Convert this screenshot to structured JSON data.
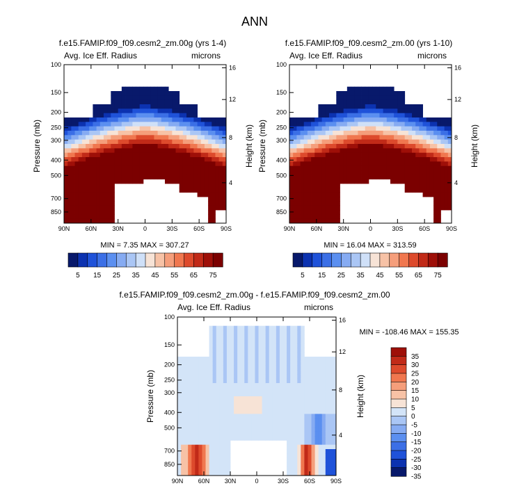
{
  "page_title": "ANN",
  "colors": {
    "ice_scale": [
      "#08196b",
      "#0c32b0",
      "#1f52d9",
      "#3b6fe6",
      "#5b8ff0",
      "#86abf2",
      "#aac6f5",
      "#cfe0f8",
      "#f7e3d6",
      "#f7c2a6",
      "#f59e7b",
      "#f0774f",
      "#dd4a2c",
      "#c12a18",
      "#9e0f08",
      "#7b0000"
    ],
    "diff_scale": [
      "#08196b",
      "#0c32b0",
      "#1f52d9",
      "#3b6fe6",
      "#5b8ff0",
      "#86abf2",
      "#aac6f5",
      "#d3e4f8",
      "#f7e3d6",
      "#f7c2a6",
      "#f59e7b",
      "#f0774f",
      "#dd4a2c",
      "#c12a18",
      "#9e0f08"
    ]
  },
  "chart_data": [
    {
      "type": "heatmap",
      "title": "f.e15.FAMIP.f09_f09.cesm2_zm.00g (yrs 1-4)",
      "left_label": "Avg. Ice Eff. Radius",
      "right_label": "microns",
      "xlabel": "",
      "ylabel": "Pressure (mb)",
      "ylabel_right": "Height (km)",
      "x_ticks": [
        "90N",
        "60N",
        "30N",
        "0",
        "30S",
        "60S",
        "90S"
      ],
      "y_ticks": [
        "100",
        "150",
        "200",
        "250",
        "300",
        "400",
        "500",
        "700",
        "850"
      ],
      "y_ticks_right": [
        "16",
        "12",
        "8",
        "4"
      ],
      "ylim": [
        100,
        1000
      ],
      "min_max_label": "MIN =   7.35   MAX = 307.27",
      "min": 7.35,
      "max": 307.27
    },
    {
      "type": "heatmap",
      "title": "f.e15.FAMIP.f09_f09.cesm2_zm.00 (yrs 1-10)",
      "left_label": "Avg. Ice Eff. Radius",
      "right_label": "microns",
      "xlabel": "",
      "ylabel": "Pressure (mb)",
      "ylabel_right": "Height (km)",
      "x_ticks": [
        "90N",
        "60N",
        "30N",
        "0",
        "30S",
        "60S",
        "90S"
      ],
      "y_ticks": [
        "100",
        "150",
        "200",
        "250",
        "300",
        "400",
        "500",
        "700",
        "850"
      ],
      "y_ticks_right": [
        "16",
        "12",
        "8",
        "4"
      ],
      "ylim": [
        100,
        1000
      ],
      "min_max_label": "MIN =  16.04   MAX = 313.59",
      "min": 16.04,
      "max": 313.59
    },
    {
      "type": "heatmap",
      "title": "f.e15.FAMIP.f09_f09.cesm2_zm.00g - f.e15.FAMIP.f09_f09.cesm2_zm.00",
      "left_label": "Avg. Ice Eff. Radius",
      "right_label": "microns",
      "xlabel": "",
      "ylabel": "Pressure (mb)",
      "ylabel_right": "Height (km)",
      "x_ticks": [
        "90N",
        "60N",
        "30N",
        "0",
        "30S",
        "60S",
        "90S"
      ],
      "y_ticks": [
        "100",
        "150",
        "200",
        "250",
        "300",
        "400",
        "500",
        "700",
        "850"
      ],
      "y_ticks_right": [
        "16",
        "12",
        "8",
        "4"
      ],
      "ylim": [
        100,
        1000
      ],
      "min_max_label": "MIN = -108.46   MAX = 155.35",
      "min": -108.46,
      "max": 155.35
    }
  ],
  "colorbar_horizontal": {
    "labels": [
      "5",
      "15",
      "25",
      "35",
      "45",
      "55",
      "65",
      "75"
    ]
  },
  "colorbar_vertical": {
    "labels": [
      "35",
      "30",
      "25",
      "20",
      "15",
      "10",
      "5",
      "0",
      "-5",
      "-10",
      "-15",
      "-20",
      "-25",
      "-30",
      "-35"
    ]
  }
}
